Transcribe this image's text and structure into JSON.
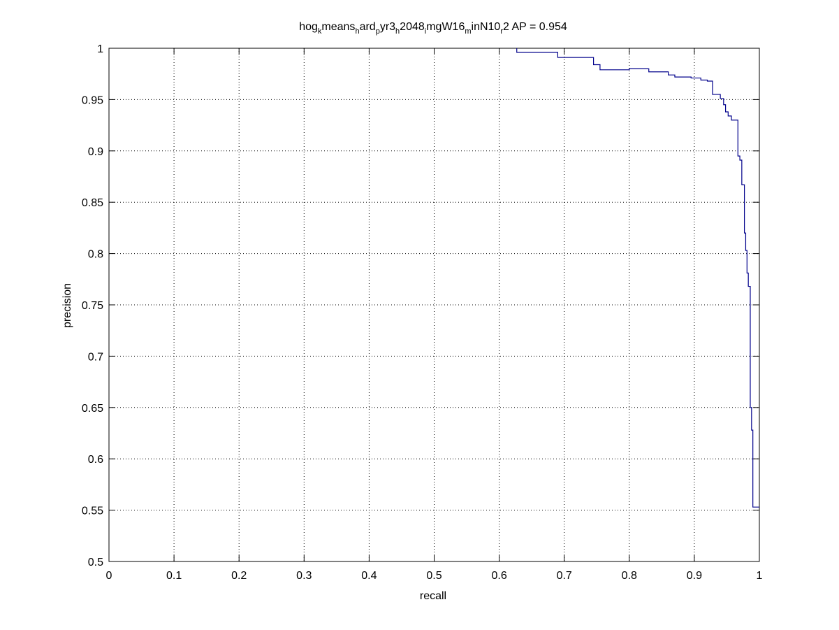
{
  "chart_data": {
    "type": "line",
    "title_parts": [
      {
        "text": "hog",
        "sub": false
      },
      {
        "text": "k",
        "sub": true
      },
      {
        "text": "means",
        "sub": false
      },
      {
        "text": "h",
        "sub": true
      },
      {
        "text": "ard",
        "sub": false
      },
      {
        "text": "p",
        "sub": true
      },
      {
        "text": "yr3",
        "sub": false
      },
      {
        "text": "h",
        "sub": true
      },
      {
        "text": "2048",
        "sub": false
      },
      {
        "text": "i",
        "sub": true
      },
      {
        "text": "mgW16",
        "sub": false
      },
      {
        "text": "m",
        "sub": true
      },
      {
        "text": "inN10",
        "sub": false
      },
      {
        "text": "r",
        "sub": true
      },
      {
        "text": "2 AP = 0.954",
        "sub": false
      }
    ],
    "xlabel": "recall",
    "ylabel": "precision",
    "xlim": [
      0,
      1
    ],
    "ylim": [
      0.5,
      1
    ],
    "xticks": [
      "0",
      "0.1",
      "0.2",
      "0.3",
      "0.4",
      "0.5",
      "0.6",
      "0.7",
      "0.8",
      "0.9",
      "1"
    ],
    "yticks": [
      "0.5",
      "0.55",
      "0.6",
      "0.65",
      "0.7",
      "0.75",
      "0.8",
      "0.85",
      "0.9",
      "0.95",
      "1"
    ],
    "grid": true,
    "line_color": "#00008b",
    "series": [
      {
        "x": [
          0.627,
          0.627,
          0.69,
          0.69,
          0.745,
          0.745,
          0.755,
          0.755,
          0.8,
          0.8,
          0.83,
          0.83,
          0.86,
          0.86,
          0.87,
          0.87,
          0.895,
          0.895,
          0.91,
          0.91,
          0.92,
          0.92,
          0.928,
          0.928,
          0.94,
          0.94,
          0.945,
          0.945,
          0.948,
          0.948,
          0.952,
          0.952,
          0.957,
          0.957,
          0.967,
          0.967,
          0.97,
          0.97,
          0.973,
          0.973,
          0.977,
          0.977,
          0.979,
          0.979,
          0.981,
          0.981,
          0.983,
          0.983,
          0.986,
          0.986,
          0.988,
          0.988,
          0.99,
          0.99,
          0.993,
          0.993,
          0.996,
          0.996,
          1.0
        ],
        "y": [
          1.0,
          0.996,
          0.996,
          0.991,
          0.991,
          0.984,
          0.984,
          0.979,
          0.979,
          0.98,
          0.98,
          0.977,
          0.977,
          0.974,
          0.974,
          0.972,
          0.972,
          0.971,
          0.971,
          0.969,
          0.969,
          0.968,
          0.968,
          0.955,
          0.955,
          0.951,
          0.951,
          0.945,
          0.945,
          0.938,
          0.938,
          0.934,
          0.934,
          0.93,
          0.93,
          0.895,
          0.895,
          0.891,
          0.891,
          0.867,
          0.867,
          0.82,
          0.82,
          0.803,
          0.803,
          0.781,
          0.781,
          0.768,
          0.768,
          0.65,
          0.65,
          0.628,
          0.628,
          0.553,
          0.553,
          0.553,
          0.553,
          0.553,
          0.553
        ]
      }
    ]
  }
}
